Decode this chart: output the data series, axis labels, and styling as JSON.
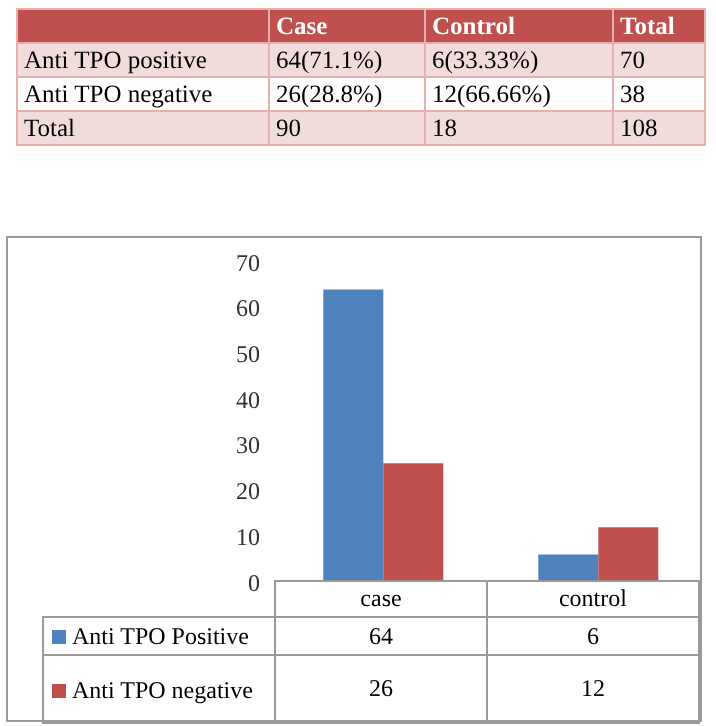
{
  "chart_data": [
    {
      "type": "other",
      "categories": [
        null,
        "Case",
        "Control",
        "Total"
      ],
      "color": "#c0504d",
      "annotations": [
        "Anti TPO positive",
        "64(71.1%)",
        "6(33.33%)",
        "70",
        "Anti TPO negative",
        "26(28.8%)",
        "12(66.66%)",
        "38",
        "Total",
        "90",
        "18",
        "108"
      ]
    },
    {
      "type": "bar",
      "categories": [
        "case",
        "control"
      ],
      "series": [
        {
          "name": "Anti TPO Positive",
          "color": "#4f81bd",
          "values": [
            64,
            6
          ]
        },
        {
          "name": "Anti TPO negative",
          "color": "#c0504d",
          "values": [
            26,
            12
          ]
        }
      ],
      "ylim": [
        0,
        70
      ],
      "yticks": [
        0,
        10,
        20,
        30,
        40,
        50,
        60,
        70
      ],
      "data_labels": true,
      "legend": "bottom",
      "grid": false
    }
  ]
}
